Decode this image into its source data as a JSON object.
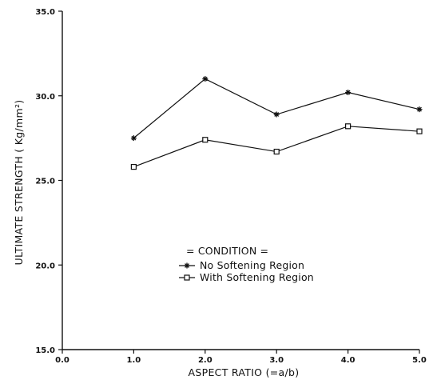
{
  "chart_data": {
    "type": "line",
    "xlabel": "ASPECT RATIO (=a/b)",
    "ylabel": "ULTIMATE STRENGTH ( Kg/mm²)",
    "xlim": [
      0.0,
      5.0
    ],
    "ylim": [
      15.0,
      35.0
    ],
    "x_ticks": [
      "0.0",
      "1.0",
      "2.0",
      "3.0",
      "4.0",
      "5.0"
    ],
    "y_ticks": [
      "15.0",
      "20.0",
      "25.0",
      "30.0",
      "35.0"
    ],
    "x": [
      1.0,
      2.0,
      3.0,
      4.0,
      5.0
    ],
    "grid": false,
    "legend_title": "= CONDITION =",
    "legend_position": "center-right",
    "series": [
      {
        "name": "No Softening Region",
        "marker": "asterisk",
        "values": [
          27.5,
          31.0,
          28.9,
          30.2,
          29.2
        ]
      },
      {
        "name": "With Softening Region",
        "marker": "square",
        "values": [
          25.8,
          27.4,
          26.7,
          28.2,
          27.9
        ]
      }
    ]
  }
}
